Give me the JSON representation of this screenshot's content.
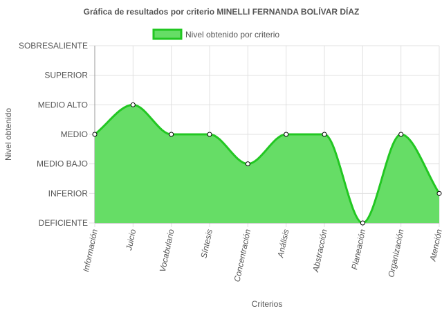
{
  "chart_data": {
    "type": "area",
    "title": "Gráfica de resultados por criterio MINELLI FERNANDA BOLÍVAR DÍAZ",
    "xlabel": "Criterios",
    "ylabel": "Nivel obtenido",
    "categories": [
      "Información",
      "Juicio",
      "Vocabulario",
      "Síntesis",
      "Concentración",
      "Análisis",
      "Abstracción",
      "Planeación",
      "Organización",
      "Atención"
    ],
    "y_levels": [
      "DEFICIENTE",
      "INFERIOR",
      "MEDIO BAJO",
      "MEDIO",
      "MEDIO ALTO",
      "SUPERIOR",
      "SOBRESALIENTE"
    ],
    "ylim": [
      0,
      6
    ],
    "series": [
      {
        "name": "Nivel obtenido por criterio",
        "values": [
          3,
          4,
          3,
          3,
          2,
          3,
          3,
          0,
          3,
          1
        ]
      }
    ],
    "colors": {
      "fill": "#66dd66",
      "stroke": "#22c722",
      "point_fill": "#ffffff",
      "point_stroke": "#000000",
      "grid": "#e0e0e0",
      "axis": "#999999"
    },
    "legend_position": "top",
    "grid": true
  }
}
